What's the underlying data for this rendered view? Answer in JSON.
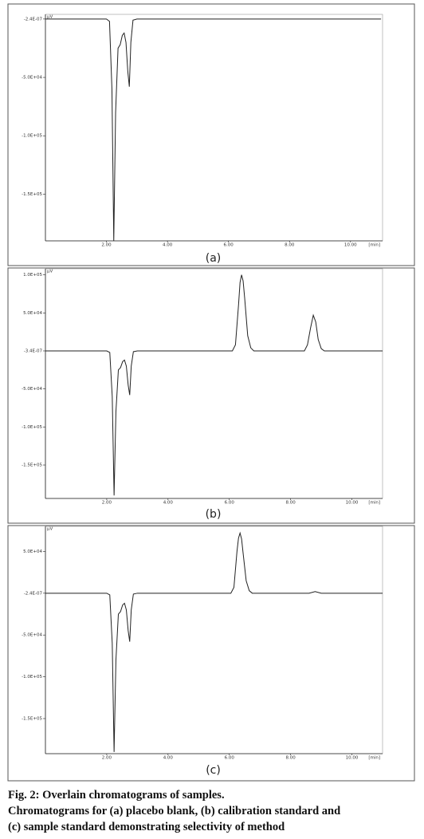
{
  "chart_data": [
    {
      "type": "line",
      "label": "(a)",
      "y_unit": "µV",
      "x_unit": "[min]",
      "color": "#222222",
      "xlim": [
        0,
        11.05
      ],
      "ylim": [
        -190000,
        4000
      ],
      "xticks": [
        {
          "value": 2,
          "label": "2.00"
        },
        {
          "value": 4,
          "label": "4.00"
        },
        {
          "value": 6,
          "label": "6.00"
        },
        {
          "value": 8,
          "label": "8.00"
        },
        {
          "value": 10,
          "label": "10.00"
        }
      ],
      "yticks": [
        {
          "value": -2.4e-07,
          "label": "-2.4E-07"
        },
        {
          "value": -50000,
          "label": "-5.0E+04"
        },
        {
          "value": -100000,
          "label": "-1.0E+05"
        },
        {
          "value": -150000,
          "label": "-1.5E+05"
        }
      ],
      "x": [
        0,
        2.0,
        2.1,
        2.18,
        2.24,
        2.3,
        2.38,
        2.45,
        2.52,
        2.58,
        2.64,
        2.7,
        2.75,
        2.8,
        2.87,
        3.0,
        11.0
      ],
      "values": [
        0,
        0,
        -2000,
        -60000,
        -190000,
        -80000,
        -25000,
        -22000,
        -14000,
        -12000,
        -20000,
        -45000,
        -58000,
        -20000,
        -1000,
        0,
        0
      ]
    },
    {
      "type": "line",
      "label": "(b)",
      "y_unit": "µV",
      "x_unit": "[min]",
      "color": "#222222",
      "xlim": [
        0,
        11.0
      ],
      "ylim": [
        -194000,
        108000
      ],
      "xticks": [
        {
          "value": 2,
          "label": "2.00"
        },
        {
          "value": 4,
          "label": "4.00"
        },
        {
          "value": 6,
          "label": "6.00"
        },
        {
          "value": 8,
          "label": "8.00"
        },
        {
          "value": 10,
          "label": "10.00"
        }
      ],
      "yticks": [
        {
          "value": 100000,
          "label": "1.0E+05"
        },
        {
          "value": 50000,
          "label": "5.0E+04"
        },
        {
          "value": -3.4e-07,
          "label": "-3.4E-07"
        },
        {
          "value": -50000,
          "label": "-5.0E+04"
        },
        {
          "value": -100000,
          "label": "-1.0E+05"
        },
        {
          "value": -150000,
          "label": "-1.5E+05"
        }
      ],
      "x": [
        0,
        2.0,
        2.1,
        2.18,
        2.24,
        2.3,
        2.38,
        2.45,
        2.52,
        2.58,
        2.64,
        2.7,
        2.75,
        2.8,
        2.87,
        3.0,
        6.1,
        6.2,
        6.3,
        6.35,
        6.4,
        6.45,
        6.5,
        6.6,
        6.7,
        6.8,
        8.45,
        8.55,
        8.65,
        8.74,
        8.82,
        8.9,
        9.0,
        9.1,
        11.0
      ],
      "values": [
        0,
        0,
        -2000,
        -60000,
        -190000,
        -80000,
        -25000,
        -22000,
        -14000,
        -12000,
        -20000,
        -45000,
        -58000,
        -20000,
        -1000,
        0,
        0,
        8000,
        60000,
        90000,
        100000,
        92000,
        70000,
        20000,
        4000,
        0,
        0,
        8000,
        30000,
        47000,
        38000,
        15000,
        3000,
        0,
        0
      ]
    },
    {
      "type": "line",
      "label": "(c)",
      "y_unit": "µV",
      "x_unit": "[min]",
      "color": "#222222",
      "xlim": [
        0,
        11.0
      ],
      "ylim": [
        -192000,
        80000
      ],
      "xticks": [
        {
          "value": 2,
          "label": "2.00"
        },
        {
          "value": 4,
          "label": "4.00"
        },
        {
          "value": 6,
          "label": "6.00"
        },
        {
          "value": 8,
          "label": "8.00"
        },
        {
          "value": 10,
          "label": "10.00"
        }
      ],
      "yticks": [
        {
          "value": 50000,
          "label": "5.0E+04"
        },
        {
          "value": -2.4e-07,
          "label": "-2.4E-07"
        },
        {
          "value": -50000,
          "label": "-5.0E+04"
        },
        {
          "value": -100000,
          "label": "-1.0E+05"
        },
        {
          "value": -150000,
          "label": "-1.5E+05"
        }
      ],
      "x": [
        0,
        2.0,
        2.1,
        2.18,
        2.24,
        2.3,
        2.38,
        2.45,
        2.52,
        2.58,
        2.64,
        2.7,
        2.75,
        2.8,
        2.87,
        3.0,
        6.05,
        6.15,
        6.25,
        6.3,
        6.35,
        6.4,
        6.45,
        6.55,
        6.65,
        6.75,
        8.6,
        8.8,
        9.0,
        11.0
      ],
      "values": [
        0,
        0,
        -2000,
        -60000,
        -190000,
        -80000,
        -25000,
        -22000,
        -14000,
        -12000,
        -20000,
        -45000,
        -58000,
        -20000,
        -1000,
        0,
        0,
        7000,
        50000,
        66000,
        72000,
        65000,
        48000,
        15000,
        3000,
        0,
        0,
        2000,
        0,
        0
      ]
    }
  ],
  "caption": [
    "Fig. 2: Overlain chromatograms of samples.",
    "Chromatograms for (a) placebo blank, (b) calibration standard and",
    "(c) sample standard demonstrating selectivity of method"
  ]
}
